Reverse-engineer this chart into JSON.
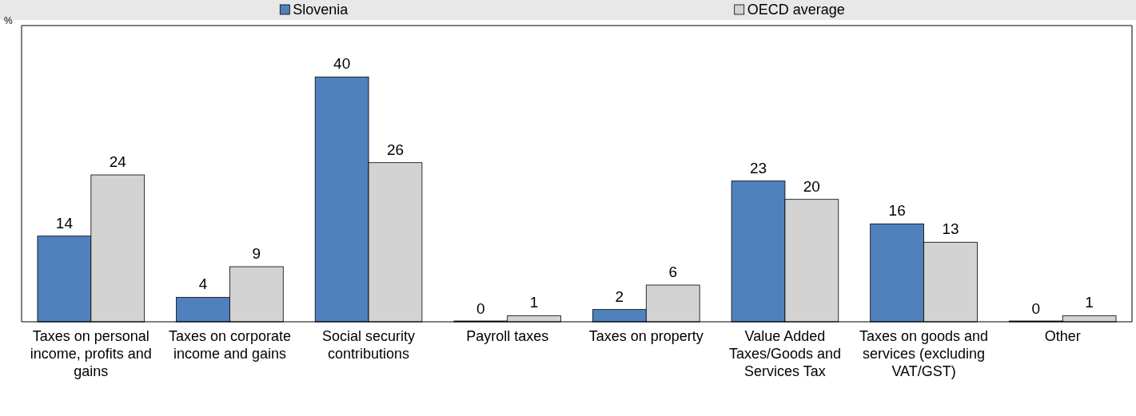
{
  "chart_data": {
    "type": "bar",
    "annotations": [
      "%"
    ],
    "categories": [
      "Taxes on personal income, profits and gains",
      "Taxes on corporate income and gains",
      "Social security contributions",
      "Payroll taxes",
      "Taxes on property",
      "Value Added Taxes/Goods and Services Tax",
      "Taxes on goods and services (excluding VAT/GST)",
      "Other"
    ],
    "series": [
      {
        "name": "Slovenia",
        "color": "#4f81bd",
        "values": [
          14,
          4,
          40,
          0,
          2,
          23,
          16,
          0
        ]
      },
      {
        "name": "OECD average",
        "color": "#d3d3d3",
        "values": [
          24,
          9,
          26,
          1,
          6,
          20,
          13,
          1
        ]
      }
    ],
    "data_labels": true,
    "legend": "top"
  }
}
